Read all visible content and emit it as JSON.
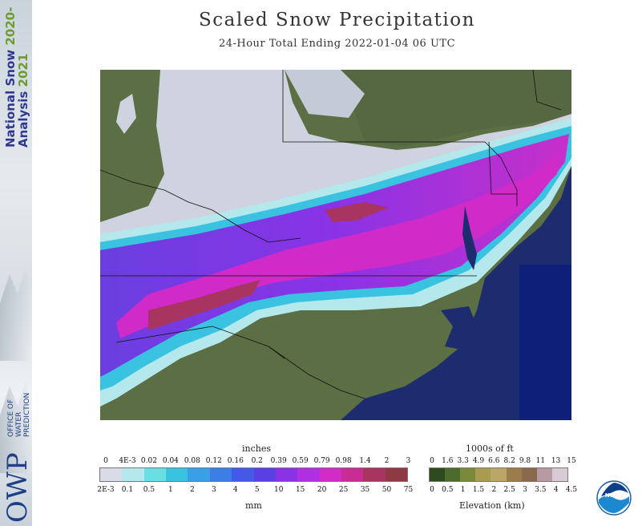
{
  "sidebar": {
    "title_line1": "National Snow",
    "title_line1_year": "2020-",
    "title_line2": "Analysis",
    "title_line2_year": "2021",
    "owp_logo": "OWP",
    "owp_line1": "OFFICE OF",
    "owp_line2": "WATER",
    "owp_line3": "PREDICTION"
  },
  "header": {
    "title": "Scaled Snow Precipitation",
    "subtitle": "24-Hour Total Ending 2022-01-04 06 UTC"
  },
  "map": {
    "region": "Mid-Atlantic / Southeast United States",
    "colors": {
      "land": "#5b6e44",
      "ocean": "#1d2c6e",
      "snow_cover": "#cfd3df"
    }
  },
  "precip_legend": {
    "top_label": "inches",
    "bottom_label": "mm",
    "inch_ticks": [
      "0",
      "4E-3",
      "0.02",
      "0.04",
      "0.08",
      "0.12",
      "0.16",
      "0.2",
      "0.39",
      "0.59",
      "0.79",
      "0.98",
      "1.4",
      "2",
      "3"
    ],
    "mm_ticks": [
      "2E-3",
      "0.1",
      "0.5",
      "1",
      "2",
      "3",
      "4",
      "5",
      "10",
      "15",
      "20",
      "25",
      "35",
      "50",
      "75"
    ],
    "colors": [
      "#d9dbe6",
      "#b4e8ec",
      "#67dfe3",
      "#39c3e0",
      "#38a0e4",
      "#3b7fe6",
      "#4459e8",
      "#5a3fe4",
      "#8a33e6",
      "#b02fe0",
      "#d22bc6",
      "#c92d93",
      "#a8355f",
      "#8d3a44"
    ]
  },
  "elevation_legend": {
    "top_label": "1000s of ft",
    "bottom_label": "Elevation (km)",
    "ft_ticks": [
      "0",
      "1.6",
      "3.3",
      "4.9",
      "6.6",
      "8.2",
      "9.8",
      "11",
      "13",
      "15"
    ],
    "km_ticks": [
      "0",
      "0.5",
      "1",
      "1.5",
      "2",
      "2.5",
      "3",
      "3.5",
      "4",
      "4.5"
    ],
    "colors": [
      "#2f4a1e",
      "#4d6b2c",
      "#7a8a3a",
      "#a89a4e",
      "#bba567",
      "#9c7b4d",
      "#8a6a4c",
      "#b89aa2",
      "#d9cbd3"
    ]
  },
  "noaa_logo": {
    "text": "NOAA"
  }
}
